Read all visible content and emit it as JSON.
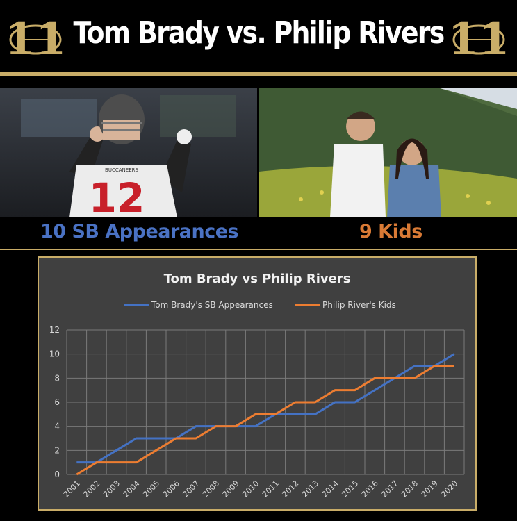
{
  "header": {
    "title": "Tom Brady vs. Philip Rivers",
    "logo_text": "11",
    "logo_icon": "football-icon",
    "accent_color": "#c9ad68"
  },
  "photos": {
    "left_caption": "10 SB Appearances",
    "right_caption": "9 Kids",
    "left_caption_color": "#4a72c4",
    "right_caption_color": "#d97a35",
    "jersey_text": "12",
    "jersey_team": "BUCCANEERS"
  },
  "chart_data": {
    "type": "line",
    "title": "Tom Brady vs Philip Rivers",
    "xlabel": "",
    "ylabel": "",
    "x": [
      "2001",
      "2002",
      "2003",
      "2004",
      "2005",
      "2006",
      "2007",
      "2008",
      "2009",
      "2010",
      "2011",
      "2012",
      "2013",
      "2014",
      "2015",
      "2016",
      "2017",
      "2018",
      "2019",
      "2020"
    ],
    "ylim": [
      0,
      12
    ],
    "yticks": [
      0,
      2,
      4,
      6,
      8,
      10,
      12
    ],
    "grid": true,
    "legend_position": "top",
    "series": [
      {
        "name": "Tom Brady's SB Appearances",
        "color": "#4472c4",
        "values": [
          1,
          1,
          2,
          3,
          3,
          3,
          4,
          4,
          4,
          4,
          5,
          5,
          5,
          6,
          6,
          7,
          8,
          9,
          9,
          10
        ]
      },
      {
        "name": "Philip River's Kids",
        "color": "#ed7d31",
        "values": [
          0,
          1,
          1,
          1,
          2,
          3,
          3,
          4,
          4,
          5,
          5,
          6,
          6,
          7,
          7,
          8,
          8,
          8,
          9,
          9
        ]
      }
    ]
  }
}
